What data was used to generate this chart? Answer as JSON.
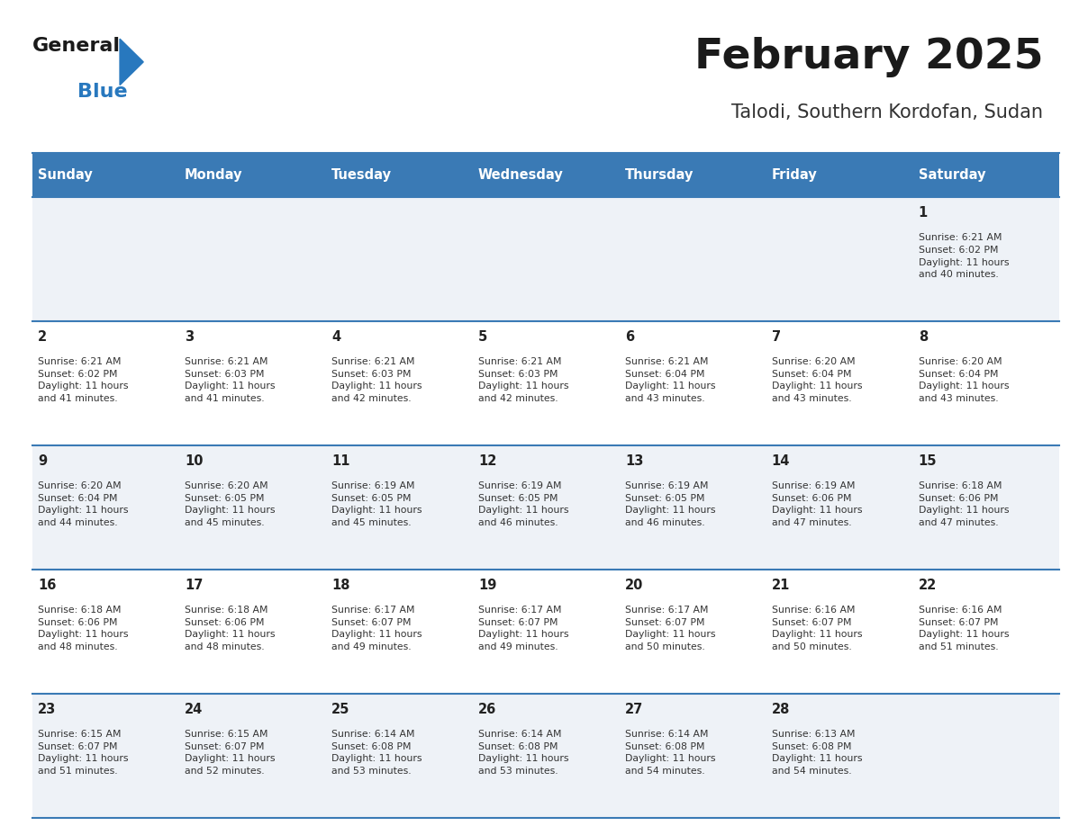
{
  "title": "February 2025",
  "subtitle": "Talodi, Southern Kordofan, Sudan",
  "header_bg": "#3a7ab5",
  "header_text": "#ffffff",
  "row_bg_even": "#eef2f7",
  "row_bg_odd": "#ffffff",
  "border_color": "#3a7ab5",
  "day_headers": [
    "Sunday",
    "Monday",
    "Tuesday",
    "Wednesday",
    "Thursday",
    "Friday",
    "Saturday"
  ],
  "calendar_data": [
    [
      null,
      null,
      null,
      null,
      null,
      null,
      {
        "day": 1,
        "sunrise": "6:21 AM",
        "sunset": "6:02 PM",
        "daylight": "11 hours\nand 40 minutes."
      }
    ],
    [
      {
        "day": 2,
        "sunrise": "6:21 AM",
        "sunset": "6:02 PM",
        "daylight": "11 hours\nand 41 minutes."
      },
      {
        "day": 3,
        "sunrise": "6:21 AM",
        "sunset": "6:03 PM",
        "daylight": "11 hours\nand 41 minutes."
      },
      {
        "day": 4,
        "sunrise": "6:21 AM",
        "sunset": "6:03 PM",
        "daylight": "11 hours\nand 42 minutes."
      },
      {
        "day": 5,
        "sunrise": "6:21 AM",
        "sunset": "6:03 PM",
        "daylight": "11 hours\nand 42 minutes."
      },
      {
        "day": 6,
        "sunrise": "6:21 AM",
        "sunset": "6:04 PM",
        "daylight": "11 hours\nand 43 minutes."
      },
      {
        "day": 7,
        "sunrise": "6:20 AM",
        "sunset": "6:04 PM",
        "daylight": "11 hours\nand 43 minutes."
      },
      {
        "day": 8,
        "sunrise": "6:20 AM",
        "sunset": "6:04 PM",
        "daylight": "11 hours\nand 43 minutes."
      }
    ],
    [
      {
        "day": 9,
        "sunrise": "6:20 AM",
        "sunset": "6:04 PM",
        "daylight": "11 hours\nand 44 minutes."
      },
      {
        "day": 10,
        "sunrise": "6:20 AM",
        "sunset": "6:05 PM",
        "daylight": "11 hours\nand 45 minutes."
      },
      {
        "day": 11,
        "sunrise": "6:19 AM",
        "sunset": "6:05 PM",
        "daylight": "11 hours\nand 45 minutes."
      },
      {
        "day": 12,
        "sunrise": "6:19 AM",
        "sunset": "6:05 PM",
        "daylight": "11 hours\nand 46 minutes."
      },
      {
        "day": 13,
        "sunrise": "6:19 AM",
        "sunset": "6:05 PM",
        "daylight": "11 hours\nand 46 minutes."
      },
      {
        "day": 14,
        "sunrise": "6:19 AM",
        "sunset": "6:06 PM",
        "daylight": "11 hours\nand 47 minutes."
      },
      {
        "day": 15,
        "sunrise": "6:18 AM",
        "sunset": "6:06 PM",
        "daylight": "11 hours\nand 47 minutes."
      }
    ],
    [
      {
        "day": 16,
        "sunrise": "6:18 AM",
        "sunset": "6:06 PM",
        "daylight": "11 hours\nand 48 minutes."
      },
      {
        "day": 17,
        "sunrise": "6:18 AM",
        "sunset": "6:06 PM",
        "daylight": "11 hours\nand 48 minutes."
      },
      {
        "day": 18,
        "sunrise": "6:17 AM",
        "sunset": "6:07 PM",
        "daylight": "11 hours\nand 49 minutes."
      },
      {
        "day": 19,
        "sunrise": "6:17 AM",
        "sunset": "6:07 PM",
        "daylight": "11 hours\nand 49 minutes."
      },
      {
        "day": 20,
        "sunrise": "6:17 AM",
        "sunset": "6:07 PM",
        "daylight": "11 hours\nand 50 minutes."
      },
      {
        "day": 21,
        "sunrise": "6:16 AM",
        "sunset": "6:07 PM",
        "daylight": "11 hours\nand 50 minutes."
      },
      {
        "day": 22,
        "sunrise": "6:16 AM",
        "sunset": "6:07 PM",
        "daylight": "11 hours\nand 51 minutes."
      }
    ],
    [
      {
        "day": 23,
        "sunrise": "6:15 AM",
        "sunset": "6:07 PM",
        "daylight": "11 hours\nand 51 minutes."
      },
      {
        "day": 24,
        "sunrise": "6:15 AM",
        "sunset": "6:07 PM",
        "daylight": "11 hours\nand 52 minutes."
      },
      {
        "day": 25,
        "sunrise": "6:14 AM",
        "sunset": "6:08 PM",
        "daylight": "11 hours\nand 53 minutes."
      },
      {
        "day": 26,
        "sunrise": "6:14 AM",
        "sunset": "6:08 PM",
        "daylight": "11 hours\nand 53 minutes."
      },
      {
        "day": 27,
        "sunrise": "6:14 AM",
        "sunset": "6:08 PM",
        "daylight": "11 hours\nand 54 minutes."
      },
      {
        "day": 28,
        "sunrise": "6:13 AM",
        "sunset": "6:08 PM",
        "daylight": "11 hours\nand 54 minutes."
      },
      null
    ]
  ],
  "fig_width": 11.88,
  "fig_height": 9.18
}
